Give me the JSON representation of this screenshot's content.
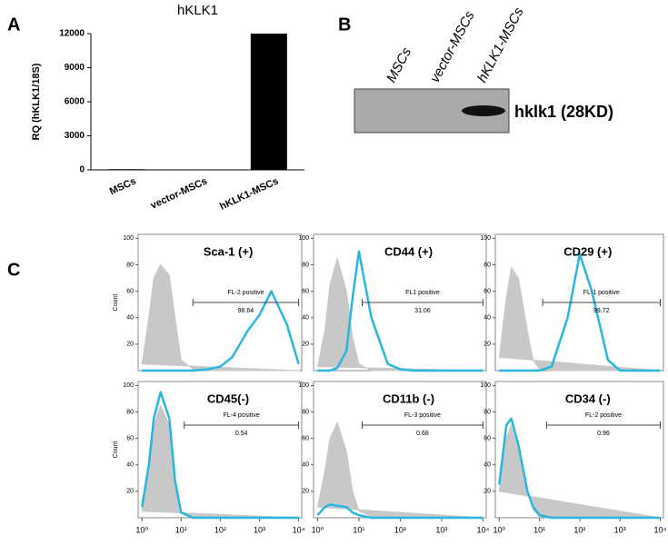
{
  "panel_labels": [
    "A",
    "B",
    "C"
  ],
  "blot": {
    "lanes": [
      "MSCs",
      "vector-MSCs",
      "hKLK1-MSCs"
    ],
    "band_label": "hklk1 (28KD)"
  },
  "chart_data": [
    {
      "type": "bar",
      "title": "hKLK1",
      "ylabel": "RQ (hKLK1/18S)",
      "categories": [
        "MSCs",
        "vector-MSCs",
        "hKLK1-MSCs"
      ],
      "values": [
        60,
        20,
        12000
      ],
      "color": "#000000",
      "ylim": [
        0,
        12000
      ],
      "yticks": [
        0,
        3000,
        6000,
        9000,
        12000
      ]
    },
    {
      "type": "area",
      "title": "Sca-1 (+)",
      "ylabel": "Count",
      "xlog": true,
      "xlim": [
        0.8,
        12000
      ],
      "ylim": [
        0,
        103
      ],
      "yticks": [
        20,
        40,
        60,
        80,
        100
      ],
      "x": [
        1,
        1.5,
        2,
        3,
        5,
        7,
        10,
        20,
        50,
        100,
        200,
        500,
        1000,
        2000,
        5000,
        10000
      ],
      "series": [
        {
          "color": "#c8c8c8",
          "values": [
            5,
            40,
            70,
            80,
            72,
            40,
            8,
            1,
            0,
            0,
            0,
            0,
            0,
            0,
            0,
            0
          ]
        },
        {
          "color": "#29b6e0",
          "values": [
            0,
            0,
            0,
            0,
            0,
            0,
            0,
            0,
            1,
            3,
            10,
            30,
            42,
            60,
            35,
            5
          ]
        }
      ],
      "gate": {
        "label": "FL-2 positive",
        "percent": 98.64,
        "range": [
          20,
          10000
        ]
      }
    },
    {
      "type": "area",
      "title": "CD44 (+)",
      "xlog": true,
      "xlim": [
        0.8,
        12000
      ],
      "ylim": [
        0,
        103
      ],
      "yticks": [
        20,
        40,
        60,
        80,
        100
      ],
      "x": [
        1,
        1.5,
        2,
        3,
        5,
        7,
        10,
        20,
        50,
        100,
        200,
        500,
        1000,
        2000,
        5000,
        10000
      ],
      "series": [
        {
          "color": "#c8c8c8",
          "values": [
            3,
            30,
            65,
            85,
            60,
            25,
            5,
            0,
            0,
            0,
            0,
            0,
            0,
            0,
            0,
            0
          ]
        },
        {
          "color": "#29b6e0",
          "values": [
            0,
            0,
            0,
            2,
            15,
            55,
            90,
            40,
            5,
            1,
            0,
            0,
            0,
            0,
            0,
            0
          ]
        }
      ],
      "gate": {
        "label": "FL1 positive",
        "percent": 31.06,
        "range": [
          12,
          10000
        ]
      }
    },
    {
      "type": "area",
      "title": "CD29 (+)",
      "xlog": true,
      "xlim": [
        0.8,
        12000
      ],
      "ylim": [
        0,
        103
      ],
      "yticks": [
        20,
        40,
        60,
        80,
        100
      ],
      "x": [
        1,
        1.5,
        2,
        3,
        5,
        7,
        10,
        20,
        50,
        100,
        200,
        500,
        1000,
        2000,
        5000,
        10000
      ],
      "series": [
        {
          "color": "#c8c8c8",
          "values": [
            10,
            55,
            78,
            70,
            30,
            8,
            1,
            0,
            0,
            0,
            0,
            0,
            0,
            0,
            0,
            0
          ]
        },
        {
          "color": "#29b6e0",
          "values": [
            0,
            0,
            0,
            0,
            0,
            0,
            0,
            3,
            40,
            88,
            60,
            8,
            0,
            0,
            0,
            0
          ]
        }
      ],
      "gate": {
        "label": "FL-1 positive",
        "percent": 99.72,
        "range": [
          12,
          10000
        ]
      }
    },
    {
      "type": "area",
      "title": "CD45(-)",
      "ylabel": "Count",
      "xlog": true,
      "xlim": [
        0.8,
        12000
      ],
      "ylim": [
        0,
        103
      ],
      "yticks": [
        20,
        40,
        60,
        80,
        100
      ],
      "xticks": [
        {
          "value": 1,
          "label": "10⁰"
        },
        {
          "value": 10,
          "label": "10¹"
        },
        {
          "value": 100,
          "label": "10²"
        },
        {
          "value": 1000,
          "label": "10³"
        },
        {
          "value": 10000,
          "label": "10⁴"
        }
      ],
      "x": [
        1,
        1.5,
        2,
        3,
        5,
        7,
        10,
        20,
        50,
        100,
        200,
        500,
        1000,
        2000,
        5000,
        10000
      ],
      "series": [
        {
          "color": "#c8c8c8",
          "values": [
            5,
            35,
            70,
            85,
            70,
            25,
            4,
            0,
            0,
            0,
            0,
            0,
            0,
            0,
            0,
            0
          ]
        },
        {
          "color": "#29b6e0",
          "values": [
            8,
            40,
            75,
            95,
            75,
            28,
            4,
            0,
            0,
            0,
            0,
            0,
            0,
            0,
            0,
            0
          ]
        }
      ],
      "gate": {
        "label": "FL-4 positive",
        "percent": 0.54,
        "range": [
          12,
          10000
        ]
      }
    },
    {
      "type": "area",
      "title": "CD11b (-)",
      "xlog": true,
      "xlim": [
        0.8,
        12000
      ],
      "ylim": [
        0,
        103
      ],
      "yticks": [
        20,
        40,
        60,
        80,
        100
      ],
      "xticks": [
        {
          "value": 1,
          "label": "10⁰"
        },
        {
          "value": 10,
          "label": "10¹"
        },
        {
          "value": 100,
          "label": "10²"
        },
        {
          "value": 1000,
          "label": "10³"
        },
        {
          "value": 10000,
          "label": "10⁴"
        }
      ],
      "x": [
        1,
        1.5,
        2,
        3,
        5,
        7,
        10,
        20,
        50,
        100,
        200,
        500,
        1000,
        2000,
        5000,
        10000
      ],
      "series": [
        {
          "color": "#c8c8c8",
          "values": [
            8,
            35,
            60,
            72,
            50,
            20,
            5,
            1,
            0,
            0,
            0,
            0,
            0,
            0,
            0,
            0
          ]
        },
        {
          "color": "#29b6e0",
          "values": [
            2,
            8,
            10,
            9,
            8,
            4,
            2,
            0,
            0,
            0,
            0,
            0,
            0,
            0,
            0,
            0
          ]
        }
      ],
      "gate": {
        "label": "FL-3 positive",
        "percent": 0.68,
        "range": [
          12,
          10000
        ]
      }
    },
    {
      "type": "area",
      "title": "CD34 (-)",
      "xlog": true,
      "xlim": [
        0.8,
        12000
      ],
      "ylim": [
        0,
        103
      ],
      "yticks": [
        20,
        40,
        60,
        80,
        100
      ],
      "xticks": [
        {
          "value": 1,
          "label": "10⁰"
        },
        {
          "value": 10,
          "label": "10¹"
        },
        {
          "value": 100,
          "label": "10²"
        },
        {
          "value": 1000,
          "label": "10³"
        },
        {
          "value": 10000,
          "label": "10⁴"
        }
      ],
      "x": [
        1,
        1.5,
        2,
        3,
        5,
        7,
        10,
        20,
        50,
        100,
        200,
        500,
        1000,
        2000,
        5000,
        10000
      ],
      "series": [
        {
          "color": "#c8c8c8",
          "values": [
            20,
            60,
            70,
            50,
            20,
            6,
            1,
            0,
            0,
            0,
            0,
            0,
            0,
            0,
            0,
            0
          ]
        },
        {
          "color": "#29b6e0",
          "values": [
            25,
            70,
            75,
            55,
            20,
            8,
            2,
            0,
            0,
            0,
            0,
            0,
            0,
            0,
            0,
            0
          ]
        }
      ],
      "gate": {
        "label": "FL-2 positive",
        "percent": 0.96,
        "range": [
          15,
          10000
        ]
      }
    }
  ]
}
